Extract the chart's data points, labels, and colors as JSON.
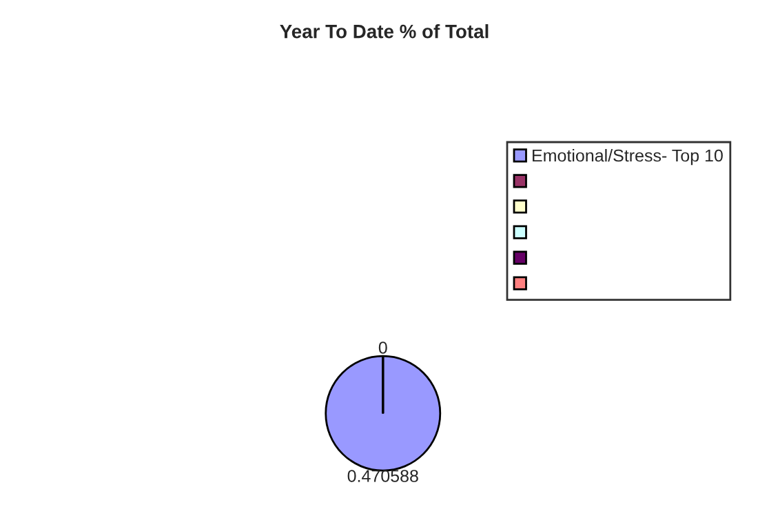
{
  "chart_data": {
    "type": "pie",
    "title": "Year To Date % of Total",
    "categories": [
      "Emotional/Stress- Top 10",
      null,
      null,
      null,
      null,
      null
    ],
    "values": [
      0.470588,
      0,
      0,
      0,
      0,
      0
    ],
    "value_labels": [
      "0.470588",
      "0",
      null,
      null,
      null,
      null
    ],
    "colors": [
      "#9999ff",
      "#993366",
      "#ffffcc",
      "#ccffff",
      "#660066",
      "#ff8080"
    ],
    "legend": "right"
  }
}
